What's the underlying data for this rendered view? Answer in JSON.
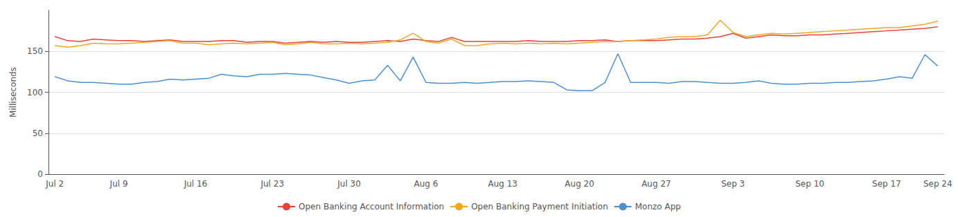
{
  "chart_data": {
    "type": "line",
    "categories": [
      "Jul 2",
      null,
      null,
      null,
      null,
      "Jul 9",
      null,
      null,
      null,
      null,
      null,
      "Jul 16",
      null,
      null,
      null,
      null,
      null,
      "Jul 23",
      null,
      null,
      null,
      null,
      null,
      "Jul 30",
      null,
      null,
      null,
      null,
      null,
      "Aug 6",
      null,
      null,
      null,
      null,
      null,
      "Aug 13",
      null,
      null,
      null,
      null,
      null,
      "Aug 20",
      null,
      null,
      null,
      null,
      null,
      "Aug 27",
      null,
      null,
      null,
      null,
      null,
      "Sep 3",
      null,
      null,
      null,
      null,
      null,
      "Sep 10",
      null,
      null,
      null,
      null,
      null,
      "Sep 17",
      null,
      null,
      null,
      "Sep 24"
    ],
    "series": [
      {
        "name": "Open Banking Account Information",
        "color": "#e8433a",
        "values": [
          168,
          163,
          162,
          165,
          164,
          163,
          163,
          162,
          163,
          164,
          162,
          162,
          162,
          163,
          163,
          161,
          162,
          162,
          160,
          161,
          162,
          161,
          162,
          161,
          161,
          162,
          163,
          162,
          165,
          163,
          162,
          167,
          162,
          162,
          162,
          162,
          162,
          163,
          162,
          162,
          162,
          163,
          163,
          164,
          162,
          163,
          163,
          163,
          164,
          165,
          165,
          166,
          168,
          172,
          166,
          168,
          170,
          169,
          169,
          170,
          170,
          171,
          172,
          173,
          174,
          175,
          176,
          177,
          178,
          180
        ]
      },
      {
        "name": "Open Banking Payment Initiation",
        "color": "#f5a623",
        "values": [
          157,
          155,
          157,
          160,
          159,
          159,
          160,
          161,
          162,
          163,
          160,
          160,
          158,
          159,
          160,
          159,
          160,
          161,
          158,
          159,
          161,
          159,
          159,
          160,
          159,
          160,
          161,
          164,
          172,
          162,
          160,
          165,
          157,
          157,
          159,
          160,
          159,
          160,
          159,
          160,
          159,
          160,
          161,
          162,
          162,
          163,
          164,
          165,
          167,
          168,
          168,
          170,
          188,
          173,
          168,
          170,
          172,
          171,
          172,
          173,
          174,
          175,
          176,
          177,
          178,
          179,
          179,
          181,
          183,
          187
        ]
      },
      {
        "name": "Monzo App",
        "color": "#4a90d9",
        "values": [
          119,
          114,
          112,
          112,
          111,
          110,
          110,
          112,
          113,
          116,
          115,
          116,
          117,
          122,
          120,
          119,
          122,
          122,
          123,
          122,
          121,
          118,
          115,
          111,
          114,
          115,
          133,
          114,
          143,
          112,
          111,
          111,
          112,
          111,
          112,
          113,
          113,
          114,
          113,
          112,
          103,
          102,
          102,
          112,
          147,
          112,
          112,
          112,
          111,
          113,
          113,
          112,
          111,
          111,
          112,
          114,
          111,
          110,
          110,
          111,
          111,
          112,
          112,
          113,
          114,
          116,
          119,
          117,
          146,
          132
        ]
      }
    ],
    "ylabel": "Milliseconds",
    "ylim": [
      0,
      200
    ],
    "yticks": [
      0,
      50,
      100,
      150
    ],
    "grid": true
  }
}
